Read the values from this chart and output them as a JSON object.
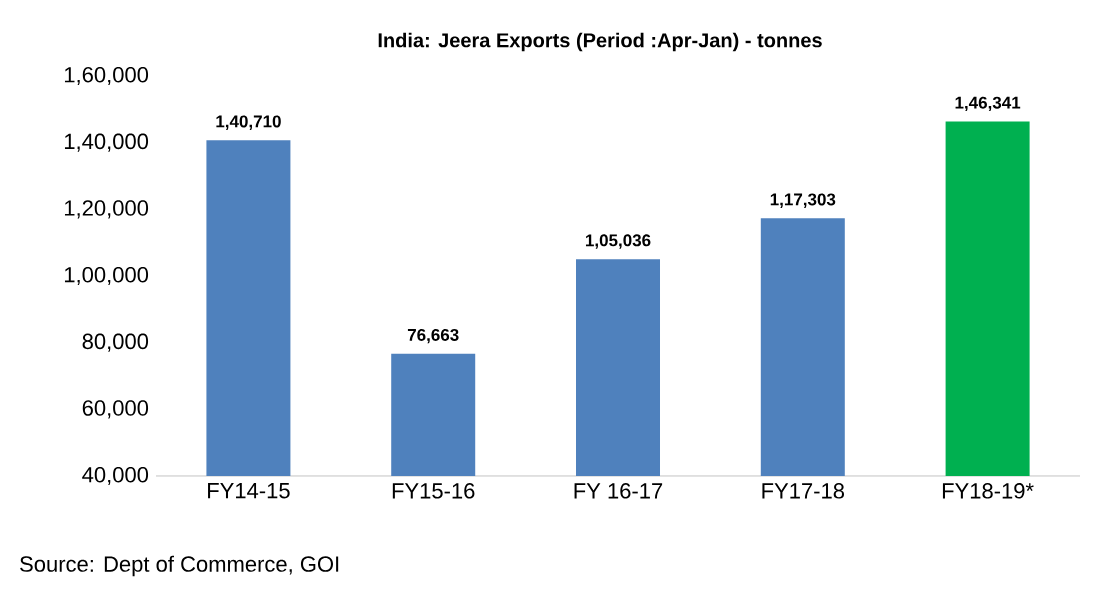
{
  "chart_data": {
    "type": "bar",
    "title": "India: Jeera Exports  (Period :Apr-Jan) - tonnes",
    "categories": [
      "FY14-15",
      "FY15-16",
      "FY 16-17",
      "FY17-18",
      "FY18-19*"
    ],
    "values": [
      140710,
      76663,
      105036,
      117303,
      146341
    ],
    "colors": [
      "#4f81bd",
      "#4f81bd",
      "#4f81bd",
      "#4f81bd",
      "#00b050"
    ],
    "value_labels": [
      "1,40,710",
      "76,663",
      "1,05,036",
      "1,17,303",
      "1,46,341"
    ],
    "ylim": [
      40000,
      160000
    ],
    "yticks": [
      {
        "value": 40000,
        "label": "40,000"
      },
      {
        "value": 60000,
        "label": "60,000"
      },
      {
        "value": 80000,
        "label": "80,000"
      },
      {
        "value": 100000,
        "label": "1,00,000"
      },
      {
        "value": 120000,
        "label": "1,20,000"
      },
      {
        "value": 140000,
        "label": "1,40,000"
      },
      {
        "value": 160000,
        "label": "1,60,000"
      }
    ],
    "annotations": [
      "Source: Dept of Commerce, GOI"
    ]
  }
}
